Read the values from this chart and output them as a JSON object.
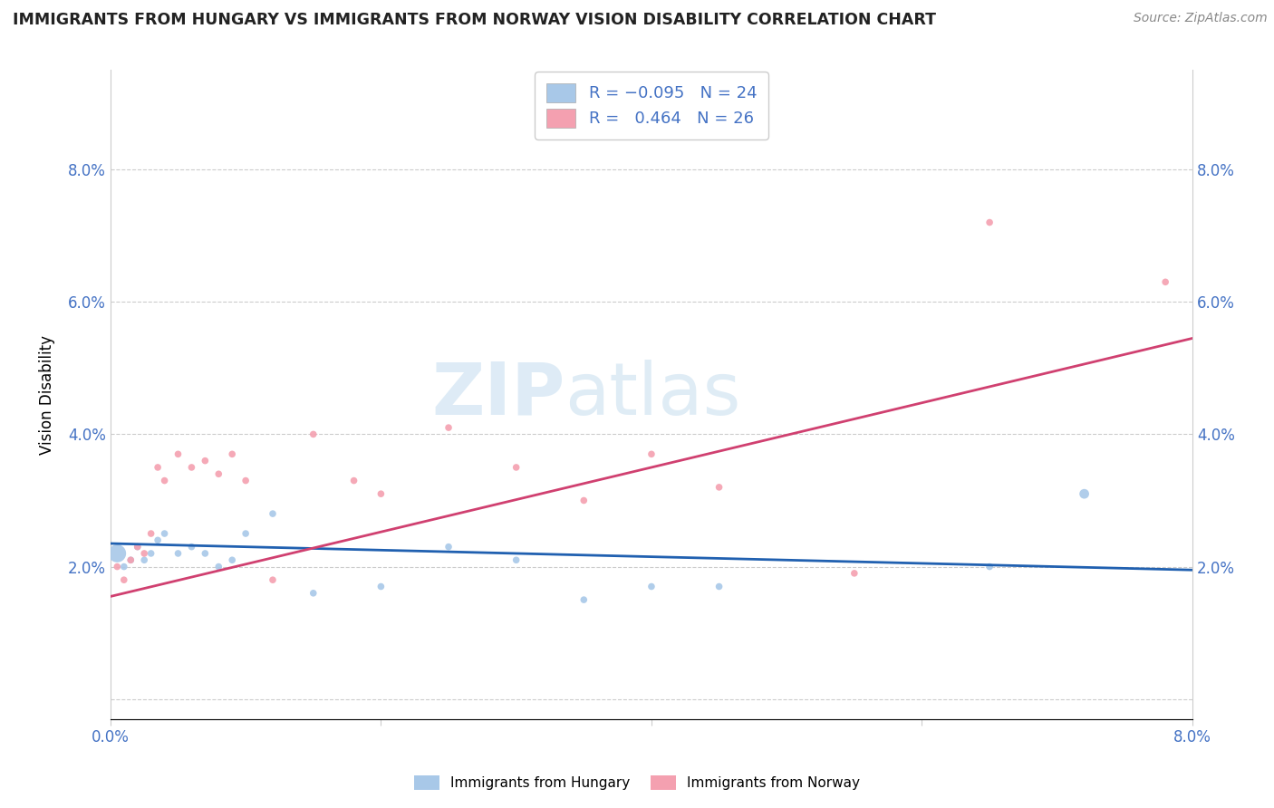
{
  "title": "IMMIGRANTS FROM HUNGARY VS IMMIGRANTS FROM NORWAY VISION DISABILITY CORRELATION CHART",
  "source": "Source: ZipAtlas.com",
  "ylabel": "Vision Disability",
  "xlim": [
    0.0,
    8.0
  ],
  "ylim": [
    -0.3,
    9.5
  ],
  "yticks": [
    0.0,
    2.0,
    4.0,
    6.0,
    8.0
  ],
  "ytick_labels": [
    "",
    "2.0%",
    "4.0%",
    "6.0%",
    "8.0%"
  ],
  "color_hungary": "#a8c8e8",
  "color_norway": "#f4a0b0",
  "color_hungary_line": "#2060b0",
  "color_norway_line": "#d04070",
  "watermark_zip": "ZIP",
  "watermark_atlas": "atlas",
  "hungary_scatter_x": [
    0.05,
    0.1,
    0.15,
    0.2,
    0.25,
    0.3,
    0.35,
    0.4,
    0.5,
    0.6,
    0.7,
    0.8,
    0.9,
    1.0,
    1.2,
    1.5,
    2.0,
    2.5,
    3.0,
    3.5,
    4.0,
    4.5,
    6.5,
    7.2
  ],
  "hungary_scatter_y": [
    2.2,
    2.0,
    2.1,
    2.3,
    2.1,
    2.2,
    2.4,
    2.5,
    2.2,
    2.3,
    2.2,
    2.0,
    2.1,
    2.5,
    2.8,
    1.6,
    1.7,
    2.3,
    2.1,
    1.5,
    1.7,
    1.7,
    2.0,
    3.1
  ],
  "hungary_scatter_sizes": [
    200,
    30,
    30,
    30,
    30,
    30,
    30,
    30,
    30,
    30,
    30,
    30,
    30,
    30,
    30,
    30,
    30,
    30,
    30,
    30,
    30,
    30,
    30,
    60
  ],
  "norway_scatter_x": [
    0.05,
    0.1,
    0.15,
    0.2,
    0.25,
    0.3,
    0.35,
    0.4,
    0.5,
    0.6,
    0.7,
    0.8,
    0.9,
    1.0,
    1.2,
    1.5,
    1.8,
    2.0,
    2.5,
    3.0,
    3.5,
    4.0,
    4.5,
    5.5,
    6.5,
    7.8
  ],
  "norway_scatter_y": [
    2.0,
    1.8,
    2.1,
    2.3,
    2.2,
    2.5,
    3.5,
    3.3,
    3.7,
    3.5,
    3.6,
    3.4,
    3.7,
    3.3,
    1.8,
    4.0,
    3.3,
    3.1,
    4.1,
    3.5,
    3.0,
    3.7,
    3.2,
    1.9,
    7.2,
    6.3
  ],
  "norway_scatter_sizes": [
    30,
    30,
    30,
    30,
    30,
    30,
    30,
    30,
    30,
    30,
    30,
    30,
    30,
    30,
    30,
    30,
    30,
    30,
    30,
    30,
    30,
    30,
    30,
    30,
    30,
    30
  ],
  "hungary_line_x": [
    0.0,
    8.0
  ],
  "hungary_line_y": [
    2.35,
    1.95
  ],
  "norway_line_x": [
    0.0,
    8.0
  ],
  "norway_line_y": [
    1.55,
    5.45
  ],
  "legend_bottom": [
    "Immigrants from Hungary",
    "Immigrants from Norway"
  ]
}
